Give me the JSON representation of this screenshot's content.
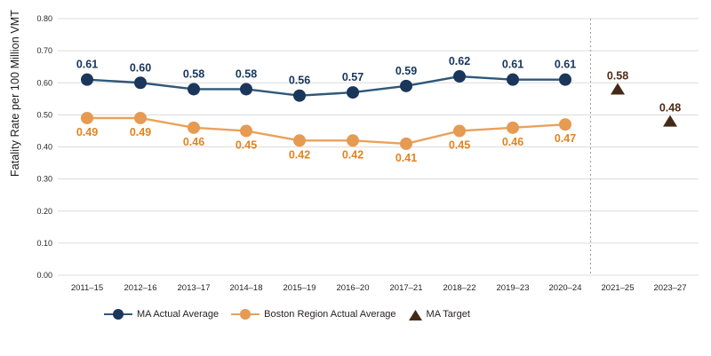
{
  "chart_data": {
    "type": "line",
    "title": "",
    "xlabel": "",
    "ylabel": "Fatality Rate per 100 Million VMT",
    "ylim": [
      0,
      0.8
    ],
    "ytick_step": 0.1,
    "ytick_labels": [
      "0.00",
      "0.10",
      "0.20",
      "0.30",
      "0.40",
      "0.50",
      "0.60",
      "0.70",
      "0.80"
    ],
    "grid": true,
    "legend_position": "bottom",
    "value_format": "two-decimals",
    "categories": [
      "2011–15",
      "2012–16",
      "2013–17",
      "2014–18",
      "2015–19",
      "2016–20",
      "2017–21",
      "2018–22",
      "2019–23",
      "2020–24",
      "2021–25",
      "2023–27"
    ],
    "separator": {
      "after_category": "2020–24",
      "style": "dotted"
    },
    "series": [
      {
        "name": "MA Actual Average",
        "marker": "circle",
        "color": "#1A365A",
        "line_color": "#2E5878",
        "label_color": "#17355C",
        "label_position": "above",
        "values": [
          0.61,
          0.6,
          0.58,
          0.58,
          0.56,
          0.57,
          0.59,
          0.62,
          0.61,
          0.61,
          null,
          null
        ]
      },
      {
        "name": "Boston Region Actual Average",
        "marker": "circle",
        "color": "#E69A52",
        "line_color": "#E8A25C",
        "label_color": "#E2831F",
        "label_position": "below",
        "values": [
          0.49,
          0.49,
          0.46,
          0.45,
          0.42,
          0.42,
          0.41,
          0.45,
          0.46,
          0.47,
          null,
          null
        ]
      },
      {
        "name": "MA Target",
        "marker": "triangle",
        "color": "#432A18",
        "label_color": "#4E2B15",
        "label_position": "above",
        "values": [
          null,
          null,
          null,
          null,
          null,
          null,
          null,
          null,
          null,
          null,
          0.58,
          0.48
        ]
      }
    ]
  },
  "colors": {
    "grid": "#DCDCDC",
    "separator": "#9A9A9A",
    "tick_text": "#262626",
    "legend_text": "#231F20",
    "background": "#FFFFFF"
  }
}
